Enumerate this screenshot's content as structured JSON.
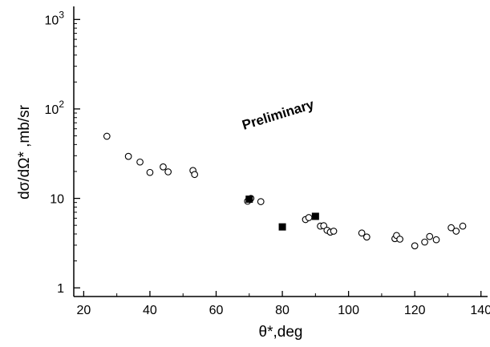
{
  "chart_data": {
    "type": "scatter",
    "xlabel": "θ*,deg",
    "ylabel": "dσ/dΩ* ,mb/sr",
    "xlim": [
      17,
      142
    ],
    "ylim": [
      0.8,
      1400
    ],
    "yscale": "log",
    "grid": false,
    "x_ticks": [
      20,
      40,
      60,
      80,
      100,
      120,
      140
    ],
    "y_ticks": [
      1,
      10,
      100,
      1000
    ],
    "y_tick_labels": [
      {
        "base": "1",
        "exp": ""
      },
      {
        "base": "10",
        "exp": ""
      },
      {
        "base": "10",
        "exp": "2"
      },
      {
        "base": "10",
        "exp": "3"
      }
    ],
    "annotation": "Preliminary",
    "series": [
      {
        "marker": "open-circle",
        "color": "#000000",
        "points": [
          [
            27,
            49.5
          ],
          [
            33.5,
            29.5
          ],
          [
            37,
            25.5
          ],
          [
            40,
            19.5
          ],
          [
            44,
            22.5
          ],
          [
            45.5,
            19.8
          ],
          [
            53,
            20.5
          ],
          [
            53.5,
            18.5
          ],
          [
            69.5,
            9.3
          ],
          [
            70.5,
            10.0
          ],
          [
            73.5,
            9.2
          ],
          [
            87,
            5.8
          ],
          [
            88,
            6.1
          ],
          [
            91.5,
            4.9
          ],
          [
            92.5,
            4.95
          ],
          [
            93.5,
            4.4
          ],
          [
            94.5,
            4.2
          ],
          [
            95.5,
            4.3
          ],
          [
            104,
            4.1
          ],
          [
            105.5,
            3.7
          ],
          [
            114,
            3.55
          ],
          [
            114.5,
            3.85
          ],
          [
            115.5,
            3.5
          ],
          [
            120,
            2.95
          ],
          [
            123,
            3.25
          ],
          [
            124.5,
            3.75
          ],
          [
            126.5,
            3.45
          ],
          [
            131,
            4.7
          ],
          [
            132.5,
            4.3
          ],
          [
            134.5,
            4.9
          ]
        ]
      },
      {
        "marker": "filled-square",
        "color": "#000000",
        "points": [
          [
            70,
            9.8
          ],
          [
            80,
            4.8
          ],
          [
            90,
            6.3
          ]
        ]
      }
    ]
  }
}
